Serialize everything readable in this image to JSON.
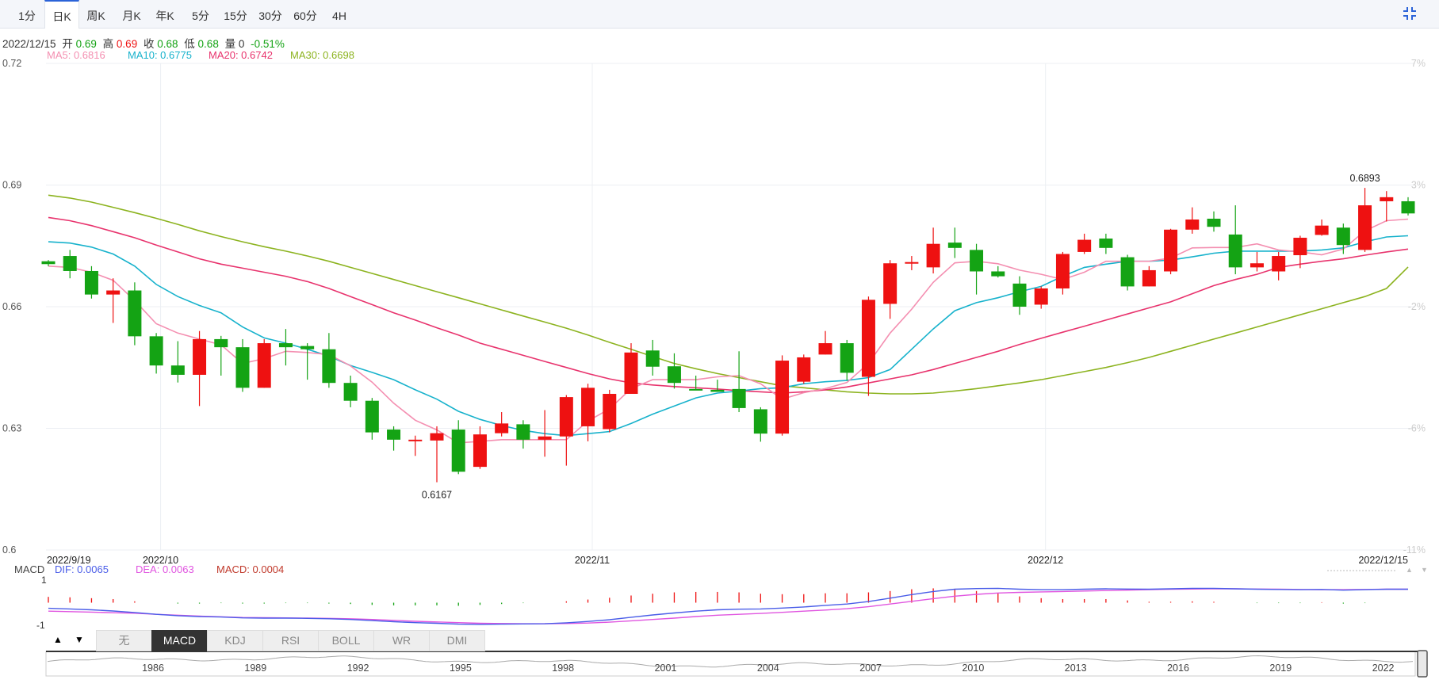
{
  "tabs": [
    {
      "label": "1分",
      "active": false
    },
    {
      "label": "日K",
      "active": true
    },
    {
      "label": "周K",
      "active": false
    },
    {
      "label": "月K",
      "active": false
    },
    {
      "label": "年K",
      "active": false
    },
    {
      "label": "5分",
      "active": false
    },
    {
      "label": "15分",
      "active": false
    },
    {
      "label": "30分",
      "active": false
    },
    {
      "label": "60分",
      "active": false
    },
    {
      "label": "4H",
      "active": false
    }
  ],
  "info": {
    "date": "2022/12/15",
    "open_label": "开",
    "open": "0.69",
    "high_label": "高",
    "high": "0.69",
    "close_label": "收",
    "close": "0.68",
    "low_label": "低",
    "low": "0.68",
    "vol_label": "量",
    "vol": "0",
    "change": "-0.51%"
  },
  "ma_legend": [
    {
      "label": "MA5: 0.6816",
      "color": "#f48fb1"
    },
    {
      "label": "MA10: 0.6775",
      "color": "#17b2cc"
    },
    {
      "label": "MA20: 0.6742",
      "color": "#e8336d"
    },
    {
      "label": "MA30: 0.6698",
      "color": "#8cb31f"
    }
  ],
  "macd_legend": {
    "title": "MACD",
    "dif": "DIF: 0.0065",
    "dea": "DEA: 0.0063",
    "macd": "MACD: 0.0004"
  },
  "indicator_buttons": [
    "无",
    "MACD",
    "KDJ",
    "RSI",
    "BOLL",
    "WR",
    "DMI"
  ],
  "active_indicator": "MACD",
  "navigator_years": [
    "1986",
    "1989",
    "1992",
    "1995",
    "1998",
    "2001",
    "2004",
    "2007",
    "2010",
    "2013",
    "2016",
    "2019",
    "2022"
  ],
  "colors": {
    "up": "#ee1111",
    "down": "#14a314",
    "ma5": "#f48fb1",
    "ma10": "#17b2cc",
    "ma20": "#e8336d",
    "ma30": "#8cb31f",
    "dif": "#4a5de8",
    "dea": "#e055e0"
  },
  "chart_data": {
    "type": "candlestick",
    "y_ticks": [
      "0.72",
      "0.69",
      "0.66",
      "0.63",
      "0.6"
    ],
    "pct_ticks": [
      "7%",
      "3%",
      "-2%",
      "-6%",
      "-11%"
    ],
    "ylim": [
      0.6,
      0.72
    ],
    "x_labels": [
      "2022/9/19",
      "2022/10",
      "2022/11",
      "2022/12",
      "2022/12/15"
    ],
    "annotations": [
      {
        "text": "0.6167",
        "value": 0.6167
      },
      {
        "text": "0.6893",
        "value": 0.6893
      }
    ],
    "candles": [
      [
        0.6712,
        0.6705,
        0.6715,
        0.67
      ],
      [
        0.6725,
        0.6688,
        0.674,
        0.667
      ],
      [
        0.6688,
        0.663,
        0.67,
        0.662
      ],
      [
        0.663,
        0.664,
        0.667,
        0.656
      ],
      [
        0.664,
        0.6527,
        0.666,
        0.6505
      ],
      [
        0.6527,
        0.6455,
        0.6535,
        0.6435
      ],
      [
        0.6455,
        0.6432,
        0.6515,
        0.6413
      ],
      [
        0.6432,
        0.652,
        0.654,
        0.6355
      ],
      [
        0.652,
        0.65,
        0.6528,
        0.643
      ],
      [
        0.65,
        0.64,
        0.652,
        0.639
      ],
      [
        0.64,
        0.651,
        0.652,
        0.64
      ],
      [
        0.651,
        0.65,
        0.6545,
        0.6455
      ],
      [
        0.6503,
        0.6495,
        0.651,
        0.642
      ],
      [
        0.6495,
        0.6412,
        0.6535,
        0.64
      ],
      [
        0.6412,
        0.6368,
        0.643,
        0.6352
      ],
      [
        0.6368,
        0.629,
        0.6375,
        0.6272
      ],
      [
        0.6297,
        0.6272,
        0.6305,
        0.6245
      ],
      [
        0.6272,
        0.6272,
        0.6282,
        0.6232
      ],
      [
        0.627,
        0.6288,
        0.6305,
        0.6167
      ],
      [
        0.6297,
        0.6193,
        0.632,
        0.6187
      ],
      [
        0.6205,
        0.6285,
        0.6305,
        0.62
      ],
      [
        0.6288,
        0.6312,
        0.634,
        0.628
      ],
      [
        0.631,
        0.6272,
        0.632,
        0.625
      ],
      [
        0.6272,
        0.628,
        0.6345,
        0.623
      ],
      [
        0.628,
        0.6377,
        0.6382,
        0.6208
      ],
      [
        0.6305,
        0.64,
        0.641,
        0.6268
      ],
      [
        0.6298,
        0.6385,
        0.6395,
        0.629
      ],
      [
        0.6385,
        0.6487,
        0.651,
        0.6385
      ],
      [
        0.6492,
        0.6452,
        0.6518,
        0.643
      ],
      [
        0.6453,
        0.6412,
        0.6485,
        0.6398
      ],
      [
        0.6397,
        0.6395,
        0.643,
        0.6395
      ],
      [
        0.6395,
        0.639,
        0.642,
        0.639
      ],
      [
        0.6397,
        0.635,
        0.649,
        0.634
      ],
      [
        0.6347,
        0.6287,
        0.6352,
        0.6267
      ],
      [
        0.6287,
        0.6467,
        0.648,
        0.6282
      ],
      [
        0.6415,
        0.6475,
        0.6482,
        0.641
      ],
      [
        0.6482,
        0.651,
        0.654,
        0.6482
      ],
      [
        0.651,
        0.6437,
        0.6518,
        0.6418
      ],
      [
        0.6427,
        0.6617,
        0.6625,
        0.638
      ],
      [
        0.6607,
        0.6707,
        0.6715,
        0.657
      ],
      [
        0.671,
        0.671,
        0.6725,
        0.669
      ],
      [
        0.6697,
        0.6755,
        0.6795,
        0.6682
      ],
      [
        0.6758,
        0.6745,
        0.6795,
        0.672
      ],
      [
        0.674,
        0.6687,
        0.6755,
        0.663
      ],
      [
        0.6687,
        0.6675,
        0.67,
        0.6672
      ],
      [
        0.6657,
        0.66,
        0.6675,
        0.658
      ],
      [
        0.6605,
        0.6645,
        0.665,
        0.6595
      ],
      [
        0.6645,
        0.673,
        0.6735,
        0.663
      ],
      [
        0.6735,
        0.6765,
        0.678,
        0.673
      ],
      [
        0.6768,
        0.6745,
        0.678,
        0.673
      ],
      [
        0.6722,
        0.665,
        0.6728,
        0.664
      ],
      [
        0.665,
        0.669,
        0.67,
        0.665
      ],
      [
        0.6687,
        0.679,
        0.6792,
        0.668
      ],
      [
        0.679,
        0.6815,
        0.6845,
        0.678
      ],
      [
        0.6817,
        0.6797,
        0.6835,
        0.6785
      ],
      [
        0.6778,
        0.6697,
        0.685,
        0.668
      ],
      [
        0.6697,
        0.6707,
        0.6735,
        0.6687
      ],
      [
        0.6687,
        0.6725,
        0.6735,
        0.6665
      ],
      [
        0.6727,
        0.677,
        0.6775,
        0.6695
      ],
      [
        0.6777,
        0.68,
        0.6815,
        0.6775
      ],
      [
        0.6795,
        0.6752,
        0.6805,
        0.673
      ],
      [
        0.674,
        0.685,
        0.6893,
        0.6735
      ],
      [
        0.686,
        0.687,
        0.6885,
        0.681
      ],
      [
        0.686,
        0.683,
        0.687,
        0.6825
      ]
    ],
    "ma5": [
      0.67,
      0.6697,
      0.6685,
      0.6665,
      0.6615,
      0.6558,
      0.6535,
      0.652,
      0.6506,
      0.646,
      0.6472,
      0.649,
      0.6487,
      0.6482,
      0.6454,
      0.6414,
      0.6362,
      0.632,
      0.6296,
      0.6264,
      0.6268,
      0.6272,
      0.6272,
      0.6272,
      0.6272,
      0.6318,
      0.6348,
      0.6398,
      0.642,
      0.642,
      0.642,
      0.6427,
      0.643,
      0.641,
      0.6372,
      0.6388,
      0.6398,
      0.6413,
      0.646,
      0.6535,
      0.6594,
      0.666,
      0.6708,
      0.6712,
      0.6706,
      0.669,
      0.668,
      0.6667,
      0.6685,
      0.6712,
      0.6712,
      0.6712,
      0.672,
      0.6745,
      0.6746,
      0.6746,
      0.6755,
      0.674,
      0.6735,
      0.6728,
      0.6742,
      0.6787,
      0.6812,
      0.6816
    ],
    "ma10": [
      0.676,
      0.6757,
      0.6747,
      0.673,
      0.67,
      0.6655,
      0.6625,
      0.6603,
      0.6585,
      0.655,
      0.6523,
      0.651,
      0.6495,
      0.6478,
      0.6455,
      0.6438,
      0.642,
      0.6395,
      0.6372,
      0.6342,
      0.6322,
      0.6307,
      0.6295,
      0.6287,
      0.6282,
      0.6287,
      0.6292,
      0.6312,
      0.6335,
      0.6355,
      0.6375,
      0.6387,
      0.6392,
      0.6398,
      0.64,
      0.641,
      0.6415,
      0.6418,
      0.6425,
      0.6445,
      0.6495,
      0.6545,
      0.659,
      0.661,
      0.6622,
      0.6637,
      0.665,
      0.6675,
      0.6697,
      0.6705,
      0.6712,
      0.6712,
      0.6715,
      0.6723,
      0.6732,
      0.6737,
      0.6737,
      0.6737,
      0.6737,
      0.674,
      0.6745,
      0.676,
      0.6772,
      0.6775
    ],
    "ma20": [
      0.682,
      0.6812,
      0.68,
      0.6785,
      0.677,
      0.6752,
      0.6735,
      0.6718,
      0.6705,
      0.6695,
      0.6685,
      0.6675,
      0.6662,
      0.6645,
      0.6625,
      0.6605,
      0.6585,
      0.6567,
      0.6548,
      0.653,
      0.651,
      0.6495,
      0.648,
      0.6465,
      0.645,
      0.6435,
      0.6422,
      0.6412,
      0.6407,
      0.6403,
      0.64,
      0.6397,
      0.6393,
      0.639,
      0.6387,
      0.639,
      0.6395,
      0.6402,
      0.6412,
      0.6422,
      0.6432,
      0.6445,
      0.646,
      0.6475,
      0.649,
      0.6507,
      0.6522,
      0.6537,
      0.6552,
      0.6567,
      0.6582,
      0.6597,
      0.6612,
      0.6632,
      0.6652,
      0.6667,
      0.668,
      0.6697,
      0.6705,
      0.6712,
      0.6718,
      0.6727,
      0.6735,
      0.6742
    ],
    "ma30": [
      0.6875,
      0.6868,
      0.6858,
      0.6845,
      0.6832,
      0.6818,
      0.6803,
      0.6787,
      0.6773,
      0.676,
      0.6748,
      0.6737,
      0.6725,
      0.6712,
      0.6697,
      0.6682,
      0.6667,
      0.6652,
      0.6637,
      0.6622,
      0.6607,
      0.6592,
      0.6577,
      0.6562,
      0.6547,
      0.653,
      0.6512,
      0.6495,
      0.6477,
      0.646,
      0.6447,
      0.6435,
      0.6425,
      0.6415,
      0.6405,
      0.64,
      0.6395,
      0.639,
      0.6387,
      0.6385,
      0.6385,
      0.6387,
      0.6392,
      0.6398,
      0.6405,
      0.6412,
      0.642,
      0.643,
      0.644,
      0.645,
      0.6462,
      0.6475,
      0.649,
      0.6505,
      0.652,
      0.6535,
      0.655,
      0.6565,
      0.658,
      0.6595,
      0.661,
      0.6625,
      0.6645,
      0.6698
    ],
    "macd": {
      "y_ticks": [
        "1",
        "-1"
      ],
      "ylim": [
        -1.15,
        1.15
      ],
      "dif": [
        -0.25,
        -0.28,
        -0.32,
        -0.37,
        -0.44,
        -0.52,
        -0.58,
        -0.62,
        -0.64,
        -0.68,
        -0.69,
        -0.69,
        -0.7,
        -0.72,
        -0.75,
        -0.8,
        -0.85,
        -0.89,
        -0.92,
        -0.96,
        -0.97,
        -0.96,
        -0.95,
        -0.94,
        -0.9,
        -0.84,
        -0.76,
        -0.65,
        -0.55,
        -0.46,
        -0.38,
        -0.32,
        -0.29,
        -0.28,
        -0.24,
        -0.19,
        -0.12,
        -0.06,
        0.05,
        0.2,
        0.36,
        0.5,
        0.6,
        0.63,
        0.64,
        0.6,
        0.58,
        0.58,
        0.6,
        0.62,
        0.61,
        0.6,
        0.62,
        0.64,
        0.64,
        0.62,
        0.6,
        0.59,
        0.58,
        0.59,
        0.56,
        0.58,
        0.6,
        0.6
      ],
      "dea": [
        -0.38,
        -0.4,
        -0.42,
        -0.45,
        -0.47,
        -0.52,
        -0.56,
        -0.6,
        -0.63,
        -0.66,
        -0.67,
        -0.68,
        -0.69,
        -0.7,
        -0.72,
        -0.75,
        -0.79,
        -0.83,
        -0.86,
        -0.89,
        -0.92,
        -0.93,
        -0.94,
        -0.94,
        -0.93,
        -0.91,
        -0.87,
        -0.81,
        -0.75,
        -0.69,
        -0.62,
        -0.56,
        -0.52,
        -0.48,
        -0.43,
        -0.38,
        -0.33,
        -0.27,
        -0.18,
        -0.06,
        0.06,
        0.18,
        0.29,
        0.37,
        0.43,
        0.46,
        0.48,
        0.5,
        0.52,
        0.54,
        0.56,
        0.58,
        0.6,
        0.61,
        0.62,
        0.62,
        0.61,
        0.6,
        0.59,
        0.58,
        0.58,
        0.59,
        0.6,
        0.6
      ]
    }
  }
}
